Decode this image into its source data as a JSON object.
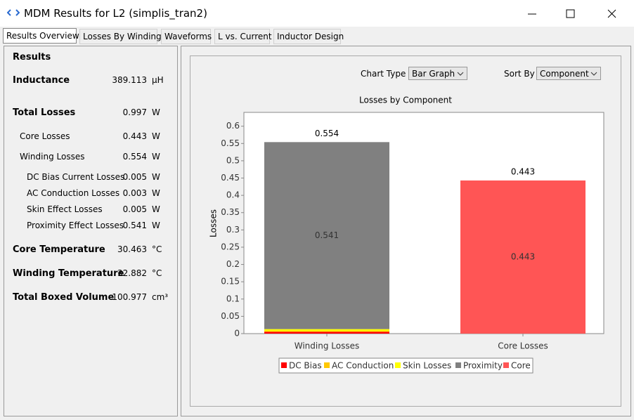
{
  "window": {
    "title": "MDM Results for L2 (simplis_tran2)"
  },
  "tabs": [
    "Results Overview",
    "Losses By Winding",
    "Waveforms",
    "L vs. Current",
    "Inductor Design"
  ],
  "results": {
    "heading": "Results",
    "rows": [
      {
        "label": "Inductance",
        "value": 389.113,
        "unit": "µH"
      },
      {
        "label": "Total Losses",
        "value": 0.997,
        "unit": "W"
      },
      {
        "label": "Core Losses",
        "value": 0.443,
        "unit": "W"
      },
      {
        "label": "Winding Losses",
        "value": 0.554,
        "unit": "W"
      },
      {
        "label": "DC Bias Current Losses",
        "value": 0.005,
        "unit": "W"
      },
      {
        "label": "AC Conduction Losses",
        "value": 0.003,
        "unit": "W"
      },
      {
        "label": "Skin Effect Losses",
        "value": 0.005,
        "unit": "W"
      },
      {
        "label": "Proximity Effect Losses",
        "value": 0.541,
        "unit": "W"
      },
      {
        "label": "Core Temperature",
        "value": 30.463,
        "unit": "°C"
      },
      {
        "label": "Winding Temperature",
        "value": 32.882,
        "unit": "°C"
      },
      {
        "label": "Total Boxed Volume",
        "value": 100.977,
        "unit": "cm³"
      }
    ]
  },
  "controls": {
    "chart_type_label": "Chart Type",
    "chart_type": "Bar Graph",
    "sort_by_label": "Sort By",
    "sort_by": "Component"
  },
  "chart_data": {
    "type": "stacked_bar",
    "title": "Losses by Component",
    "ylabel": "Losses",
    "categories": [
      "Winding Losses",
      "Core Losses"
    ],
    "series": [
      {
        "name": "DC Bias",
        "color": "#ff0000",
        "values": [
          0.005,
          0
        ]
      },
      {
        "name": "AC Conduction",
        "color": "#ffc800",
        "values": [
          0.003,
          0
        ]
      },
      {
        "name": "Skin Losses",
        "color": "#ffff00",
        "values": [
          0.005,
          0
        ]
      },
      {
        "name": "Proximity",
        "color": "#808080",
        "values": [
          0.541,
          0
        ],
        "value_labels": [
          "0.541",
          null
        ]
      },
      {
        "name": "Core",
        "color": "#ff5555",
        "values": [
          0,
          0.443
        ],
        "value_labels": [
          null,
          "0.443"
        ]
      }
    ],
    "totals": [
      0.554,
      0.443
    ],
    "ylim": [
      0,
      0.64
    ],
    "yticks": [
      0,
      0.05,
      0.1,
      0.15,
      0.2,
      0.25,
      0.3,
      0.35,
      0.4,
      0.45,
      0.5,
      0.55,
      0.6
    ],
    "grid": false,
    "legend": "bottom"
  }
}
